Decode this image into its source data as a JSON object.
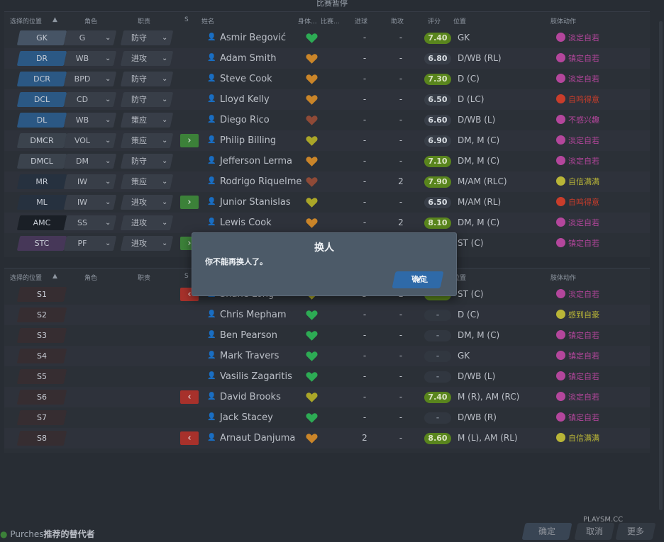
{
  "header": {
    "title": "比赛暂停"
  },
  "columns": {
    "position": "选择的位置",
    "role": "角色",
    "duty": "职责",
    "sub": "S",
    "name": "姓名",
    "condition": "身体...",
    "match_sharp": "比赛...",
    "goals": "进球",
    "assists": "助攻",
    "rating": "评分",
    "pos": "位置",
    "body": "肢体动作"
  },
  "lineup": [
    {
      "pos": "GK",
      "cls": "gk",
      "role": "G",
      "duty": "防守",
      "sub": "",
      "name": "Asmir Begović",
      "heart": "green",
      "goals": "-",
      "assists": "-",
      "rating": "7.40",
      "rc": "g",
      "position": "GK",
      "body": "淡定自若",
      "bc": "pink"
    },
    {
      "pos": "DR",
      "cls": "def",
      "role": "WB",
      "duty": "进攻",
      "sub": "",
      "name": "Adam Smith",
      "heart": "orange",
      "goals": "-",
      "assists": "-",
      "rating": "6.80",
      "rc": "gr",
      "position": "D/WB (RL)",
      "body": "镇定自若",
      "bc": "pink"
    },
    {
      "pos": "DCR",
      "cls": "def",
      "role": "BPD",
      "duty": "防守",
      "sub": "",
      "name": "Steve Cook",
      "heart": "orange",
      "goals": "-",
      "assists": "-",
      "rating": "7.30",
      "rc": "g",
      "position": "D (C)",
      "body": "淡定自若",
      "bc": "pink"
    },
    {
      "pos": "DCL",
      "cls": "def",
      "role": "CD",
      "duty": "防守",
      "sub": "",
      "name": "Lloyd Kelly",
      "heart": "orange",
      "goals": "-",
      "assists": "-",
      "rating": "6.50",
      "rc": "gr",
      "position": "D (LC)",
      "body": "自鸣得意",
      "bc": "red"
    },
    {
      "pos": "DL",
      "cls": "def",
      "role": "WB",
      "duty": "策应",
      "sub": "",
      "name": "Diego Rico",
      "heart": "brown",
      "goals": "-",
      "assists": "-",
      "rating": "6.60",
      "rc": "gr",
      "position": "D/WB (L)",
      "body": "不感兴趣",
      "bc": "pink"
    },
    {
      "pos": "DMCR",
      "cls": "dm",
      "role": "VOL",
      "duty": "策应",
      "sub": "in",
      "name": "Philip Billing",
      "heart": "yellow",
      "goals": "-",
      "assists": "-",
      "rating": "6.90",
      "rc": "gr",
      "position": "DM, M (C)",
      "body": "淡定自若",
      "bc": "pink"
    },
    {
      "pos": "DMCL",
      "cls": "dm",
      "role": "DM",
      "duty": "防守",
      "sub": "",
      "name": "Jefferson Lerma",
      "heart": "orange",
      "goals": "-",
      "assists": "-",
      "rating": "7.10",
      "rc": "g",
      "position": "DM, M (C)",
      "body": "淡定自若",
      "bc": "pink"
    },
    {
      "pos": "MR",
      "cls": "mid",
      "role": "IW",
      "duty": "策应",
      "sub": "",
      "name": "Rodrigo Riquelme",
      "heart": "brown",
      "goals": "-",
      "assists": "2",
      "rating": "7.90",
      "rc": "g",
      "position": "M/AM (RLC)",
      "body": "自信满满",
      "bc": "yel"
    },
    {
      "pos": "ML",
      "cls": "mid",
      "role": "IW",
      "duty": "进攻",
      "sub": "in",
      "name": "Junior Stanislas",
      "heart": "yellow",
      "goals": "-",
      "assists": "-",
      "rating": "6.50",
      "rc": "gr",
      "position": "M/AM (RL)",
      "body": "自鸣得意",
      "bc": "red"
    },
    {
      "pos": "AMC",
      "cls": "amc",
      "role": "SS",
      "duty": "进攻",
      "sub": "",
      "name": "Lewis Cook",
      "heart": "orange",
      "goals": "-",
      "assists": "2",
      "rating": "8.10",
      "rc": "g",
      "position": "DM, M (C)",
      "body": "淡定自若",
      "bc": "pink"
    },
    {
      "pos": "STC",
      "cls": "att",
      "role": "PF",
      "duty": "进攻",
      "sub": "in",
      "name": "",
      "heart": "",
      "goals": "",
      "assists": "",
      "rating": "",
      "rc": "",
      "position": "ST (C)",
      "body": "镇定自若",
      "bc": "pink"
    }
  ],
  "subs": [
    {
      "pos": "S1",
      "sub": "out",
      "name": "Shane Long",
      "heart": "yellow",
      "goals": "3",
      "assists": "1",
      "rating": "",
      "rc": "g",
      "position": "ST (C)",
      "body": "淡定自若",
      "bc": "pink"
    },
    {
      "pos": "S2",
      "sub": "",
      "name": "Chris Mepham",
      "heart": "green",
      "goals": "-",
      "assists": "-",
      "rating": "-",
      "rc": "dash",
      "position": "D (C)",
      "body": "感到自豪",
      "bc": "yel"
    },
    {
      "pos": "S3",
      "sub": "",
      "name": "Ben Pearson",
      "heart": "green",
      "goals": "-",
      "assists": "-",
      "rating": "-",
      "rc": "dash",
      "position": "DM, M (C)",
      "body": "镇定自若",
      "bc": "pink"
    },
    {
      "pos": "S4",
      "sub": "",
      "name": "Mark Travers",
      "heart": "green",
      "goals": "-",
      "assists": "-",
      "rating": "-",
      "rc": "dash",
      "position": "GK",
      "body": "镇定自若",
      "bc": "pink"
    },
    {
      "pos": "S5",
      "sub": "",
      "name": "Vasilis Zagaritis",
      "heart": "green",
      "goals": "-",
      "assists": "-",
      "rating": "-",
      "rc": "dash",
      "position": "D/WB (L)",
      "body": "镇定自若",
      "bc": "pink"
    },
    {
      "pos": "S6",
      "sub": "out",
      "name": "David Brooks",
      "heart": "yellow",
      "goals": "-",
      "assists": "-",
      "rating": "7.40",
      "rc": "g",
      "position": "M (R), AM (RC)",
      "body": "淡定自若",
      "bc": "pink"
    },
    {
      "pos": "S7",
      "sub": "",
      "name": "Jack Stacey",
      "heart": "green",
      "goals": "-",
      "assists": "-",
      "rating": "-",
      "rc": "dash",
      "position": "D/WB (R)",
      "body": "镇定自若",
      "bc": "pink"
    },
    {
      "pos": "S8",
      "sub": "out",
      "name": "Arnaut Danjuma",
      "heart": "orange",
      "goals": "2",
      "assists": "-",
      "rating": "8.60",
      "rc": "g",
      "position": "M (L), AM (RL)",
      "body": "自信满满",
      "bc": "yel"
    }
  ],
  "modal": {
    "title": "换人",
    "message": "你不能再换人了。",
    "ok": "确定"
  },
  "footer": {
    "link_prefix": "Purches",
    "link_text": "推荐的替代者",
    "ok": "确定",
    "cancel": "取消",
    "more": "更多"
  },
  "watermark": "PLAYSM.CC",
  "colors": {
    "accent": "#2f6aa8",
    "rating_good": "#5f8f1e",
    "sub_in": "#3f8a3c",
    "sub_out": "#b3332d"
  }
}
